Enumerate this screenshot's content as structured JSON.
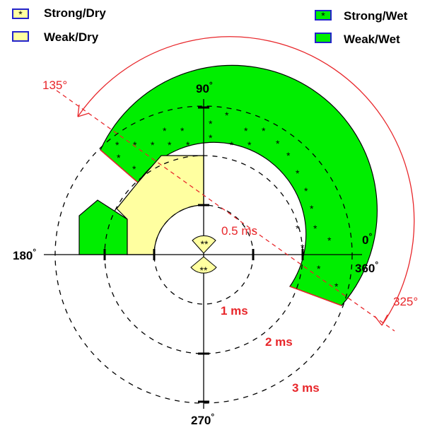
{
  "legend": {
    "strong_dry": "Strong/Dry",
    "weak_dry": "Weak/Dry",
    "strong_wet": "Strong/Wet",
    "weak_wet": "Weak/Wet",
    "star_symbol": "*"
  },
  "axes": {
    "top": "90",
    "left": "180",
    "right_top": "0",
    "right_bottom": "360",
    "bottom": "270",
    "degree": "°"
  },
  "angles": {
    "start": "135°",
    "end": "325°"
  },
  "rings": {
    "r05": "0.5 ms",
    "r1": "1 ms",
    "r2": "2 ms",
    "r3": "3 ms"
  },
  "center_glyph": "**",
  "colors": {
    "wet": "#00ee00",
    "dry": "#ffffa0",
    "red": "#e8262a",
    "legend_border": "#2222cc"
  }
}
